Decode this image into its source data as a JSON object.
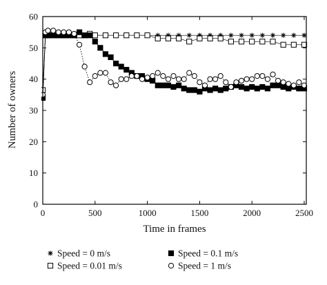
{
  "chart_data": {
    "type": "line",
    "title": "",
    "xlabel": "Time in frames",
    "ylabel": "Number of owners",
    "xlim": [
      0,
      2520
    ],
    "ylim": [
      0,
      60
    ],
    "x_ticks": [
      0,
      500,
      1000,
      1500,
      2000,
      2500
    ],
    "y_ticks": [
      0,
      10,
      20,
      30,
      40,
      50,
      60
    ],
    "grid": false,
    "legend_position": "bottom",
    "series": [
      {
        "name": "Speed = 0 m/s",
        "marker": "asterisk",
        "x": [
          0,
          25,
          50,
          100,
          150,
          200,
          250,
          300,
          350,
          400,
          450,
          500,
          600,
          700,
          800,
          900,
          1000,
          1100,
          1200,
          1300,
          1400,
          1500,
          1600,
          1700,
          1800,
          1900,
          2000,
          2100,
          2200,
          2300,
          2400,
          2500
        ],
        "values": [
          34,
          54,
          54,
          54,
          54,
          54,
          54,
          54,
          54,
          54,
          54,
          54,
          54,
          54,
          54,
          54,
          54,
          54,
          54,
          54,
          54,
          54,
          54,
          54,
          54,
          54,
          54,
          54,
          54,
          54,
          54,
          54
        ]
      },
      {
        "name": "Speed = 0.01 m/s",
        "marker": "open-square",
        "x": [
          0,
          25,
          50,
          100,
          150,
          200,
          250,
          300,
          350,
          400,
          450,
          500,
          600,
          700,
          800,
          900,
          1000,
          1100,
          1200,
          1300,
          1400,
          1500,
          1600,
          1700,
          1800,
          1900,
          2000,
          2100,
          2200,
          2300,
          2400,
          2500
        ],
        "values": [
          36.5,
          54,
          54,
          54,
          54,
          54,
          54,
          54,
          54,
          54,
          54.5,
          54,
          54,
          54,
          54,
          54,
          54,
          53,
          53,
          53,
          52,
          53,
          53,
          53,
          52,
          52,
          52,
          52,
          52,
          51,
          51,
          51
        ]
      },
      {
        "name": "Speed = 0.1 m/s",
        "marker": "filled-square",
        "x": [
          0,
          25,
          50,
          100,
          150,
          200,
          250,
          300,
          350,
          400,
          450,
          500,
          550,
          600,
          650,
          700,
          750,
          800,
          850,
          900,
          950,
          1000,
          1050,
          1100,
          1150,
          1200,
          1250,
          1300,
          1350,
          1400,
          1450,
          1500,
          1550,
          1600,
          1650,
          1700,
          1750,
          1800,
          1850,
          1900,
          1950,
          2000,
          2050,
          2100,
          2150,
          2200,
          2250,
          2300,
          2350,
          2400,
          2450,
          2500
        ],
        "values": [
          34,
          54,
          54,
          54,
          54,
          54,
          54,
          54,
          55,
          54,
          54,
          52,
          50,
          48,
          47,
          45,
          44,
          43,
          42,
          41,
          41,
          40,
          39.5,
          38,
          38,
          38,
          37.5,
          38,
          37,
          36.5,
          36.5,
          36,
          37,
          36.5,
          37,
          36.5,
          37,
          37.5,
          38,
          37.5,
          37,
          37.5,
          37,
          37.5,
          37,
          38,
          38,
          37.5,
          37,
          37.5,
          37,
          37
        ]
      },
      {
        "name": "Speed = 1 m/s",
        "marker": "open-circle",
        "x": [
          0,
          25,
          50,
          100,
          150,
          200,
          250,
          300,
          350,
          400,
          450,
          500,
          550,
          600,
          650,
          700,
          750,
          800,
          850,
          900,
          950,
          1000,
          1050,
          1100,
          1150,
          1200,
          1250,
          1300,
          1350,
          1400,
          1450,
          1500,
          1550,
          1600,
          1650,
          1700,
          1750,
          1800,
          1850,
          1900,
          1950,
          2000,
          2050,
          2100,
          2150,
          2200,
          2250,
          2300,
          2350,
          2400,
          2450,
          2500
        ],
        "values": [
          35,
          55,
          55.5,
          55.5,
          55,
          55,
          55,
          54.5,
          51,
          44,
          39,
          41,
          42,
          42,
          39,
          38,
          40,
          40,
          41,
          41,
          40,
          40.5,
          41,
          42,
          41,
          40,
          41,
          40,
          40,
          42,
          41,
          39,
          38,
          40,
          40,
          41,
          39,
          37.5,
          39,
          39.5,
          40,
          40,
          41,
          41,
          40,
          41.5,
          39.5,
          39,
          38.5,
          38,
          39,
          38
        ]
      }
    ]
  }
}
